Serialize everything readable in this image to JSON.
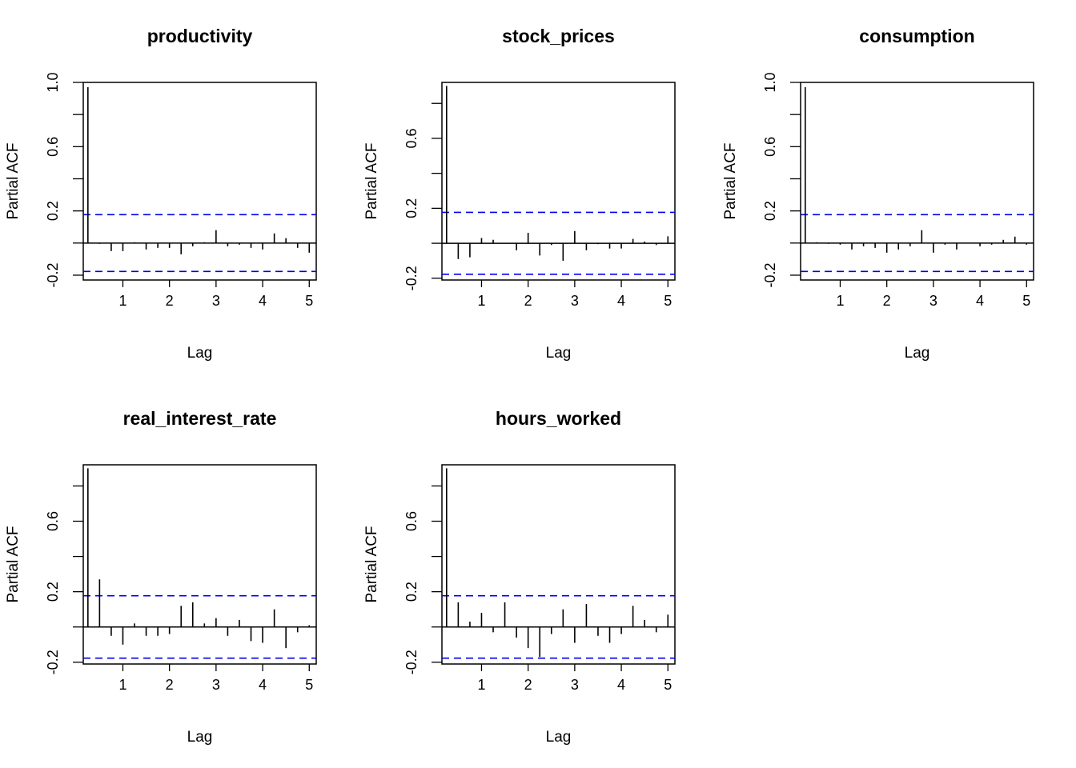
{
  "chart_data": [
    {
      "type": "bar",
      "title": "productivity",
      "xlabel": "Lag",
      "ylabel": "Partial ACF",
      "xlim": [
        0.15,
        5.15
      ],
      "ylim": [
        -0.23,
        1.0
      ],
      "xticks": [
        1,
        2,
        3,
        4,
        5
      ],
      "yticks": [
        -0.2,
        0.2,
        0.6,
        1.0
      ],
      "ytick_labels": [
        "-0.2",
        "0.2",
        "0.6",
        "1.0"
      ],
      "yminor_ticks": [
        0.0,
        0.4,
        0.8
      ],
      "ci": 0.177,
      "lag": [
        0.25,
        0.5,
        0.75,
        1.0,
        1.25,
        1.5,
        1.75,
        2.0,
        2.25,
        2.5,
        2.75,
        3.0,
        3.25,
        3.5,
        3.75,
        4.0,
        4.25,
        4.5,
        4.75,
        5.0
      ],
      "values": [
        0.97,
        -0.005,
        -0.05,
        -0.05,
        0.005,
        -0.04,
        -0.03,
        -0.03,
        -0.07,
        -0.02,
        0.005,
        0.08,
        -0.02,
        -0.01,
        -0.03,
        -0.04,
        0.06,
        0.03,
        -0.03,
        -0.06
      ]
    },
    {
      "type": "bar",
      "title": "stock_prices",
      "xlabel": "Lag",
      "ylabel": "Partial ACF",
      "xlim": [
        0.15,
        5.15
      ],
      "ylim": [
        -0.21,
        0.92
      ],
      "xticks": [
        1,
        2,
        3,
        4,
        5
      ],
      "yticks": [
        -0.2,
        0.2,
        0.6
      ],
      "ytick_labels": [
        "-0.2",
        "0.2",
        "0.6"
      ],
      "yminor_ticks": [
        0.0,
        0.4,
        0.8
      ],
      "ci": 0.177,
      "lag": [
        0.25,
        0.5,
        0.75,
        1.0,
        1.25,
        1.5,
        1.75,
        2.0,
        2.25,
        2.5,
        2.75,
        3.0,
        3.25,
        3.5,
        3.75,
        4.0,
        4.25,
        4.5,
        4.75,
        5.0
      ],
      "values": [
        0.9,
        -0.09,
        -0.08,
        0.03,
        0.02,
        0.0,
        -0.04,
        0.06,
        -0.07,
        -0.01,
        -0.1,
        0.07,
        -0.04,
        -0.005,
        -0.03,
        -0.03,
        0.025,
        0.01,
        -0.01,
        0.04
      ]
    },
    {
      "type": "bar",
      "title": "consumption",
      "xlabel": "Lag",
      "ylabel": "Partial ACF",
      "xlim": [
        0.15,
        5.15
      ],
      "ylim": [
        -0.23,
        1.0
      ],
      "xticks": [
        1,
        2,
        3,
        4,
        5
      ],
      "yticks": [
        -0.2,
        0.2,
        0.6,
        1.0
      ],
      "ytick_labels": [
        "-0.2",
        "0.2",
        "0.6",
        "1.0"
      ],
      "yminor_ticks": [
        0.0,
        0.4,
        0.8
      ],
      "ci": 0.177,
      "lag": [
        0.25,
        0.5,
        0.75,
        1.0,
        1.25,
        1.5,
        1.75,
        2.0,
        2.25,
        2.5,
        2.75,
        3.0,
        3.25,
        3.5,
        3.75,
        4.0,
        4.25,
        4.5,
        4.75,
        5.0
      ],
      "values": [
        0.97,
        0.005,
        -0.005,
        -0.01,
        -0.04,
        -0.02,
        -0.03,
        -0.06,
        -0.04,
        -0.02,
        0.08,
        -0.06,
        -0.01,
        -0.04,
        0.0,
        -0.02,
        -0.01,
        0.02,
        0.04,
        -0.01
      ]
    },
    {
      "type": "bar",
      "title": "real_interest_rate",
      "xlabel": "Lag",
      "ylabel": "Partial ACF",
      "xlim": [
        0.15,
        5.15
      ],
      "ylim": [
        -0.21,
        0.92
      ],
      "xticks": [
        1,
        2,
        3,
        4,
        5
      ],
      "yticks": [
        -0.2,
        0.2,
        0.6
      ],
      "ytick_labels": [
        "-0.2",
        "0.2",
        "0.6"
      ],
      "yminor_ticks": [
        0.0,
        0.4,
        0.8
      ],
      "ci": 0.177,
      "lag": [
        0.25,
        0.5,
        0.75,
        1.0,
        1.25,
        1.5,
        1.75,
        2.0,
        2.25,
        2.5,
        2.75,
        3.0,
        3.25,
        3.5,
        3.75,
        4.0,
        4.25,
        4.5,
        4.75,
        5.0
      ],
      "values": [
        0.9,
        0.27,
        -0.05,
        -0.1,
        0.02,
        -0.05,
        -0.05,
        -0.04,
        0.12,
        0.14,
        0.02,
        0.05,
        -0.05,
        0.04,
        -0.08,
        -0.09,
        0.1,
        -0.12,
        -0.03,
        0.01
      ]
    },
    {
      "type": "bar",
      "title": "hours_worked",
      "xlabel": "Lag",
      "ylabel": "Partial ACF",
      "xlim": [
        0.15,
        5.15
      ],
      "ylim": [
        -0.21,
        0.92
      ],
      "xticks": [
        1,
        2,
        3,
        4,
        5
      ],
      "yticks": [
        -0.2,
        0.2,
        0.6
      ],
      "ytick_labels": [
        "-0.2",
        "0.2",
        "0.6"
      ],
      "yminor_ticks": [
        0.0,
        0.4,
        0.8
      ],
      "ci": 0.177,
      "lag": [
        0.25,
        0.5,
        0.75,
        1.0,
        1.25,
        1.5,
        1.75,
        2.0,
        2.25,
        2.5,
        2.75,
        3.0,
        3.25,
        3.5,
        3.75,
        4.0,
        4.25,
        4.5,
        4.75,
        5.0
      ],
      "values": [
        0.9,
        0.14,
        0.03,
        0.08,
        -0.03,
        0.14,
        -0.06,
        -0.12,
        -0.17,
        -0.04,
        0.1,
        -0.09,
        0.13,
        -0.05,
        -0.09,
        -0.04,
        0.12,
        0.04,
        -0.03,
        0.07
      ]
    }
  ],
  "colors": {
    "ci_line": "#0000ee",
    "bar": "#000000",
    "axis": "#000000"
  }
}
